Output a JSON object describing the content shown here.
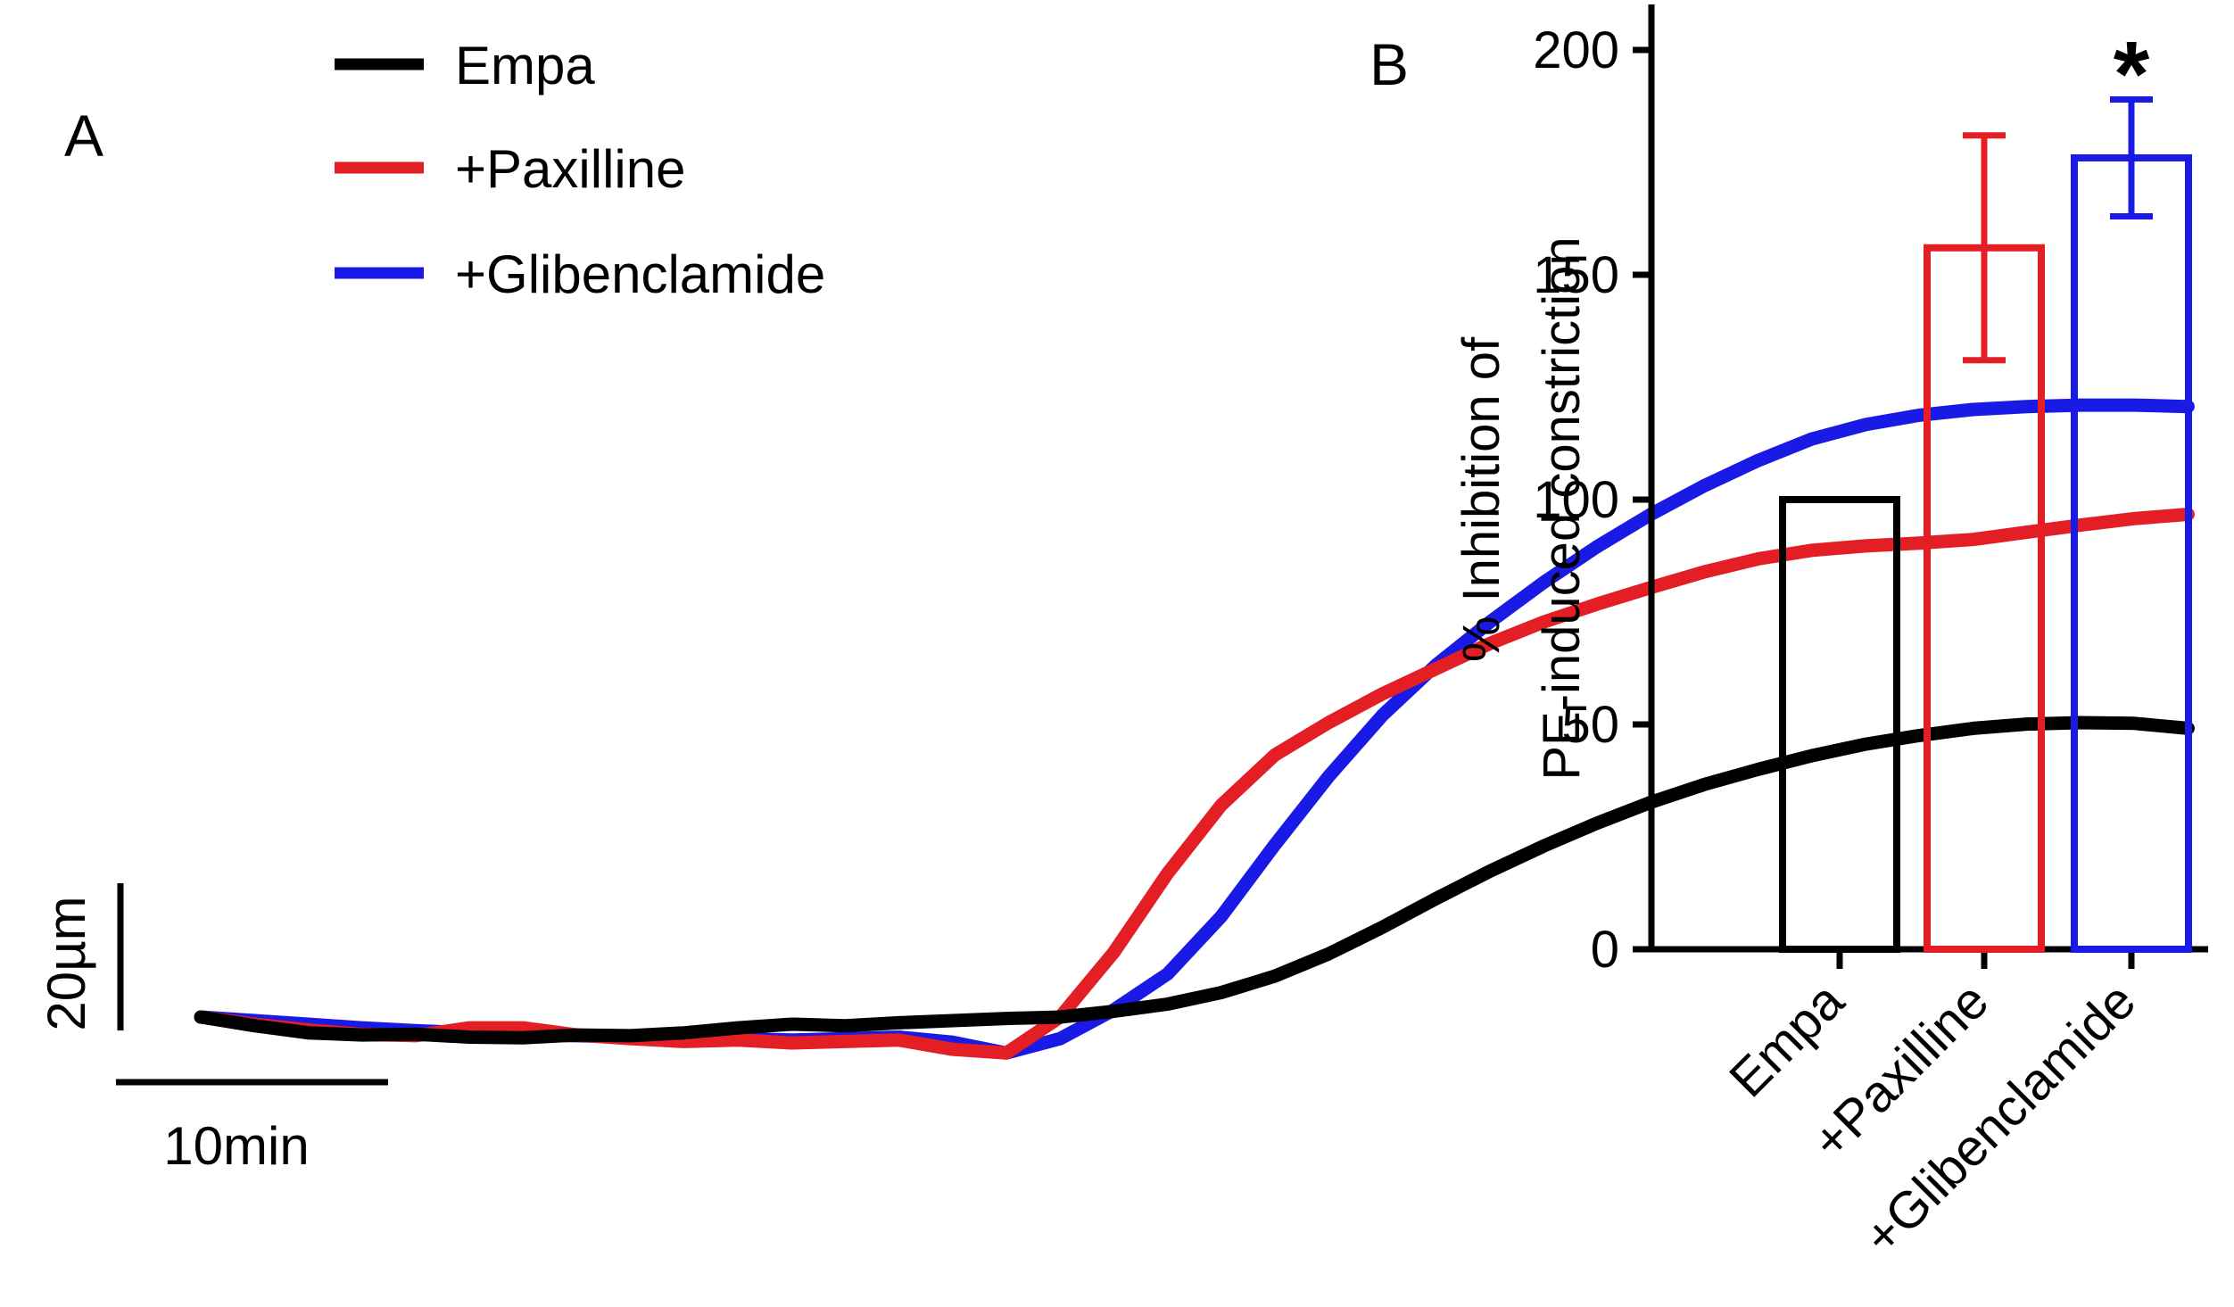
{
  "panel_a_label": "A",
  "panel_b_label": "B",
  "colors": {
    "Empa": "#000000",
    "+Paxilline": "#e31e24",
    "+Glibenclamide": "#1a1ae6"
  },
  "chart_data": [
    {
      "type": "line",
      "panel": "A",
      "title": "",
      "xlabel": "",
      "ylabel": "",
      "x_unit": "min",
      "y_unit": "µm",
      "scale_bars": {
        "time_label": "10min",
        "time_value": 10,
        "diameter_label": "20µm",
        "diameter_value": 20
      },
      "legend": [
        "Empa",
        "+Paxilline",
        "+Glibenclamide"
      ],
      "legend_position": "top",
      "series": [
        {
          "name": "Empa",
          "color": "#000000",
          "x": [
            0,
            2,
            4,
            6,
            8,
            10,
            12,
            14,
            16,
            18,
            20,
            22,
            24,
            26,
            28,
            30,
            32,
            34,
            36,
            38,
            40,
            42,
            44,
            46,
            48,
            50,
            52,
            54,
            56,
            58,
            60,
            62,
            64,
            66,
            68,
            70,
            72,
            74
          ],
          "y": [
            0,
            -1.2,
            -2.2,
            -2.5,
            -2.4,
            -2.8,
            -2.9,
            -2.5,
            -2.6,
            -2.2,
            -1.5,
            -1.0,
            -1.2,
            -0.8,
            -0.5,
            -0.2,
            0.0,
            0.8,
            1.8,
            3.4,
            5.7,
            8.8,
            12.5,
            16.5,
            20.3,
            23.8,
            27.0,
            29.9,
            32.4,
            34.5,
            36.4,
            38.0,
            39.2,
            40.2,
            40.8,
            41.0,
            40.9,
            40.2
          ]
        },
        {
          "name": "+Paxilline",
          "color": "#e31e24",
          "x": [
            0,
            2,
            4,
            6,
            8,
            10,
            12,
            14,
            16,
            18,
            20,
            22,
            24,
            26,
            28,
            30,
            32,
            34,
            36,
            38,
            40,
            42,
            44,
            46,
            48,
            50,
            52,
            54,
            56,
            58,
            60,
            62,
            64,
            66,
            68,
            70,
            72,
            74
          ],
          "y": [
            0,
            -1.0,
            -1.8,
            -2.4,
            -2.6,
            -1.5,
            -1.5,
            -2.5,
            -3.0,
            -3.4,
            -3.2,
            -3.6,
            -3.4,
            -3.2,
            -4.5,
            -5.0,
            0.0,
            9.0,
            20.0,
            29.5,
            36.5,
            41.0,
            45.0,
            48.5,
            52.0,
            55.0,
            57.5,
            59.8,
            62.0,
            63.8,
            65.0,
            65.6,
            66.0,
            66.5,
            67.5,
            68.5,
            69.4,
            70.0
          ]
        },
        {
          "name": "+Glibenclamide",
          "color": "#1a1ae6",
          "x": [
            0,
            2,
            4,
            6,
            8,
            10,
            12,
            14,
            16,
            18,
            20,
            22,
            24,
            26,
            28,
            30,
            32,
            34,
            36,
            38,
            40,
            42,
            44,
            46,
            48,
            50,
            52,
            54,
            56,
            58,
            60,
            62,
            64,
            66,
            68,
            70,
            72,
            74
          ],
          "y": [
            0,
            -0.5,
            -1.0,
            -1.5,
            -1.9,
            -2.2,
            -2.5,
            -2.6,
            -2.8,
            -2.8,
            -3.0,
            -3.2,
            -3.0,
            -2.8,
            -3.5,
            -5.0,
            -3.0,
            1.0,
            6.0,
            14.0,
            24.0,
            33.5,
            42.0,
            49.0,
            55.0,
            60.5,
            65.5,
            70.0,
            74.0,
            77.5,
            80.5,
            82.5,
            83.8,
            84.6,
            85.0,
            85.2,
            85.2,
            85.0
          ]
        }
      ]
    },
    {
      "type": "bar",
      "panel": "B",
      "title": "",
      "xlabel": "",
      "ylabel_line1": "% Inhibition of",
      "ylabel_line2": "PE-induced constriction",
      "ylim": [
        0,
        200
      ],
      "yticks": [
        0,
        50,
        100,
        150,
        200
      ],
      "categories": [
        "Empa",
        "+Paxilline",
        "+Glibenclamide"
      ],
      "values": [
        100,
        156,
        176
      ],
      "errors": [
        0,
        25,
        13
      ],
      "colors": [
        "#000000",
        "#e31e24",
        "#1a1ae6"
      ],
      "annotations": [
        {
          "category": "+Glibenclamide",
          "text": "*"
        }
      ]
    }
  ]
}
